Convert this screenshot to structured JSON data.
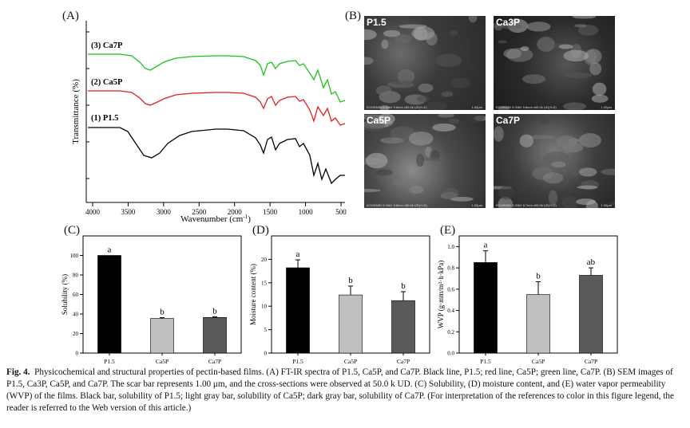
{
  "panel_a": {
    "label": "(A)",
    "xlabel": "Wavenumber (cm",
    "xlabel_sup": "-1",
    "xlabel_end": ")",
    "ylabel": "Transmittance (%)",
    "x_ticks": [
      "4000",
      "3500",
      "3000",
      "2500",
      "2000",
      "1500",
      "1000",
      "500"
    ],
    "series_labels": [
      "(3) Ca7P",
      "(2) Ca5P",
      "(1) P1.5"
    ]
  },
  "panel_b": {
    "label": "(B)",
    "images": [
      {
        "label": "P1.5",
        "info": "KOOKMIN 3.00kV 9.8mm x50.0k UD(+LD)",
        "scale": "1.00μm"
      },
      {
        "label": "Ca3P",
        "info": "KOOKMIN 3.00kV 9.8mm x50.0k UD(+LD)",
        "scale": "1.00μm"
      },
      {
        "label": "Ca5P",
        "info": "KOOKMIN 3.00kV 9.8mm x50.0k UD(+LD)",
        "scale": "1.00μm"
      },
      {
        "label": "Ca7P",
        "info": "KOOKMIN 3.00kV 8.7mm x50.0k UD(+LD)",
        "scale": "1.00μm"
      }
    ]
  },
  "chart_data": [
    {
      "type": "bar",
      "panel": "(C)",
      "ylabel": "Solubility (%)",
      "categories": [
        "P1.5",
        "Ca5P",
        "Ca7P"
      ],
      "values": [
        100,
        35.5,
        36.5
      ],
      "errors": [
        0,
        0.8,
        0.6
      ],
      "letters": [
        "a",
        "b",
        "b"
      ],
      "ylim": [
        0,
        120
      ],
      "yticks": [
        "0",
        "20",
        "40",
        "60",
        "80",
        "100"
      ],
      "colors": [
        "#000000",
        "#c0c0c0",
        "#5a5a5a"
      ]
    },
    {
      "type": "bar",
      "panel": "(D)",
      "ylabel": "Moisture content (%)",
      "categories": [
        "P1.5",
        "Ca5P",
        "Ca7P"
      ],
      "values": [
        18.2,
        12.4,
        11.2
      ],
      "errors": [
        1.7,
        1.9,
        1.9
      ],
      "letters": [
        "a",
        "b",
        "b"
      ],
      "ylim": [
        0,
        25
      ],
      "yticks": [
        "0",
        "5",
        "10",
        "15",
        "20"
      ],
      "colors": [
        "#000000",
        "#c0c0c0",
        "#5a5a5a"
      ]
    },
    {
      "type": "bar",
      "panel": "(E)",
      "ylabel": "WVP (g·mm/m²·h·kPa)",
      "categories": [
        "P1.5",
        "Ca5P",
        "Ca7P"
      ],
      "values": [
        0.85,
        0.55,
        0.73
      ],
      "errors": [
        0.11,
        0.12,
        0.07
      ],
      "letters": [
        "a",
        "b",
        "ab"
      ],
      "ylim": [
        0,
        1.1
      ],
      "yticks": [
        "0.0",
        "0.2",
        "0.4",
        "0.6",
        "0.8",
        "1.0"
      ],
      "colors": [
        "#000000",
        "#c0c0c0",
        "#5a5a5a"
      ]
    }
  ],
  "caption": {
    "fig": "Fig. 4.",
    "text": "Physicochemical and structural properties of pectin-based films. (A) FT-IR spectra of P1.5, Ca5P, and Ca7P. Black line, P1.5; red line, Ca5P; green line, Ca7P. (B) SEM images of P1.5, Ca3P, Ca5P, and Ca7P. The scar bar represents 1.00 μm, and the cross-sections were observed at 50.0 k UD. (C) Solubility, (D) moisture content, and (E) water vapor permeability (WVP) of the films. Black bar, solubility of P1.5; light gray bar, solubility of Ca5P; dark gray bar, solubility of Ca7P. (For interpretation of the references to color in this figure legend, the reader is referred to the Web version of this article.)"
  }
}
